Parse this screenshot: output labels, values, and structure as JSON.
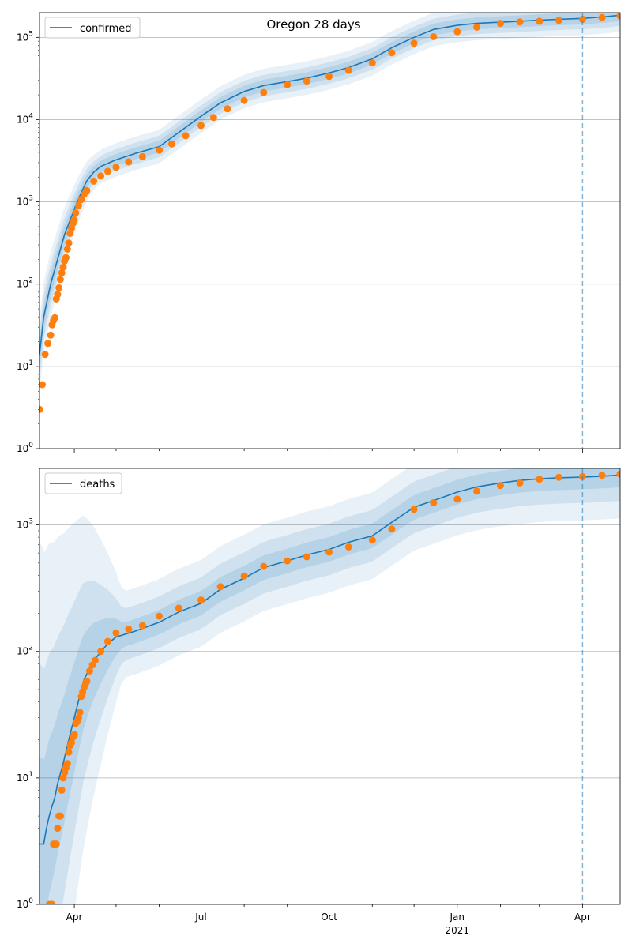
{
  "title": "Oregon 28 days",
  "colors": {
    "model_line": "#1f77b4",
    "observed_points": "#ff7f0e",
    "band": "#1f77b4",
    "grid": "#b0b0b0",
    "forecast_marker": "#1f77b4"
  },
  "x_axis": {
    "type": "date",
    "range": [
      "2020-03-07",
      "2021-04-28"
    ],
    "tick_labels": [
      "Apr",
      "Jul",
      "Oct",
      "Jan",
      "Apr"
    ],
    "year_label": "2021"
  },
  "forecast_start": "2021-04-01",
  "chart_data": [
    {
      "type": "scatter",
      "name": "confirmed",
      "legend": "confirmed",
      "legend_position": "top-left",
      "y_scale": "log",
      "ylim": [
        1,
        200000
      ],
      "y_tick_labels": [
        "10^0",
        "10^1",
        "10^2",
        "10^3",
        "10^4",
        "10^5"
      ],
      "grid": "y",
      "model": {
        "x": [
          "2020-03-07",
          "2020-03-10",
          "2020-03-15",
          "2020-03-20",
          "2020-03-25",
          "2020-03-29",
          "2020-04-02",
          "2020-04-06",
          "2020-04-10",
          "2020-04-15",
          "2020-04-20",
          "2020-04-30",
          "2020-05-15",
          "2020-06-01",
          "2020-06-15",
          "2020-07-01",
          "2020-07-15",
          "2020-08-01",
          "2020-08-15",
          "2020-09-01",
          "2020-09-15",
          "2020-10-01",
          "2020-10-15",
          "2020-11-01",
          "2020-11-15",
          "2020-12-01",
          "2020-12-15",
          "2021-01-01",
          "2021-01-15",
          "2021-02-01",
          "2021-02-15",
          "2021-03-01",
          "2021-03-15",
          "2021-04-01",
          "2021-04-15",
          "2021-04-28"
        ],
        "y": [
          14,
          40,
          100,
          200,
          400,
          600,
          900,
          1300,
          1800,
          2300,
          2700,
          3200,
          3900,
          4700,
          7000,
          11000,
          16000,
          22000,
          26000,
          29000,
          32000,
          37000,
          43000,
          55000,
          75000,
          100000,
          125000,
          140000,
          148000,
          153000,
          157000,
          162000,
          166000,
          170000,
          177000,
          186000
        ]
      },
      "observed": {
        "x": [
          "2020-03-07",
          "2020-03-09",
          "2020-03-11",
          "2020-03-13",
          "2020-03-15",
          "2020-03-16",
          "2020-03-17",
          "2020-03-18",
          "2020-03-19",
          "2020-03-20",
          "2020-03-21",
          "2020-03-22",
          "2020-03-23",
          "2020-03-24",
          "2020-03-25",
          "2020-03-26",
          "2020-03-27",
          "2020-03-28",
          "2020-03-29",
          "2020-03-30",
          "2020-03-31",
          "2020-04-01",
          "2020-04-02",
          "2020-04-04",
          "2020-04-06",
          "2020-04-08",
          "2020-04-10",
          "2020-04-15",
          "2020-04-20",
          "2020-04-25",
          "2020-05-01",
          "2020-05-10",
          "2020-05-20",
          "2020-06-01",
          "2020-06-10",
          "2020-06-20",
          "2020-07-01",
          "2020-07-10",
          "2020-07-20",
          "2020-08-01",
          "2020-08-15",
          "2020-09-01",
          "2020-09-15",
          "2020-10-01",
          "2020-10-15",
          "2020-11-01",
          "2020-11-15",
          "2020-12-01",
          "2020-12-15",
          "2021-01-01",
          "2021-01-15",
          "2021-02-01",
          "2021-02-15",
          "2021-03-01",
          "2021-03-15",
          "2021-04-01",
          "2021-04-15",
          "2021-04-28"
        ],
        "y": [
          3,
          6,
          14,
          19,
          24,
          32,
          36,
          39,
          66,
          75,
          90,
          114,
          137,
          161,
          191,
          210,
          266,
          316,
          414,
          479,
          548,
          606,
          736,
          899,
          1068,
          1239,
          1371,
          1785,
          2059,
          2354,
          2635,
          3068,
          3541,
          4243,
          5060,
          6366,
          8485,
          10605,
          13543,
          17088,
          21400,
          26600,
          29400,
          33500,
          39800,
          49000,
          65000,
          85000,
          102000,
          117000,
          133000,
          148000,
          154000,
          157000,
          161000,
          166000,
          174000,
          183000
        ]
      }
    },
    {
      "type": "scatter",
      "name": "deaths",
      "legend": "deaths",
      "legend_position": "top-left",
      "y_scale": "log",
      "ylim": [
        1,
        2800
      ],
      "y_tick_labels": [
        "10^0",
        "10^1",
        "10^2",
        "10^3"
      ],
      "grid": "y",
      "model": {
        "x": [
          "2020-03-07",
          "2020-03-10",
          "2020-03-12",
          "2020-03-14",
          "2020-03-16",
          "2020-03-18",
          "2020-03-20",
          "2020-03-24",
          "2020-03-28",
          "2020-04-01",
          "2020-04-05",
          "2020-04-08",
          "2020-04-15",
          "2020-04-25",
          "2020-05-01",
          "2020-05-15",
          "2020-06-01",
          "2020-06-15",
          "2020-07-01",
          "2020-07-15",
          "2020-08-01",
          "2020-08-15",
          "2020-09-01",
          "2020-09-15",
          "2020-10-01",
          "2020-10-15",
          "2020-11-01",
          "2020-11-15",
          "2020-12-01",
          "2020-12-15",
          "2021-01-01",
          "2021-01-15",
          "2021-02-01",
          "2021-02-15",
          "2021-03-01",
          "2021-03-15",
          "2021-04-01",
          "2021-04-15",
          "2021-04-28"
        ],
        "y": [
          3,
          3,
          4,
          5,
          6,
          7,
          9,
          13,
          20,
          30,
          45,
          60,
          85,
          115,
          130,
          145,
          170,
          205,
          240,
          310,
          380,
          460,
          520,
          580,
          640,
          730,
          820,
          1050,
          1380,
          1560,
          1820,
          2000,
          2150,
          2250,
          2320,
          2360,
          2390,
          2430,
          2480
        ]
      },
      "observed": {
        "x": [
          "2020-03-14",
          "2020-03-15",
          "2020-03-16",
          "2020-03-17",
          "2020-03-18",
          "2020-03-19",
          "2020-03-20",
          "2020-03-21",
          "2020-03-22",
          "2020-03-23",
          "2020-03-24",
          "2020-03-25",
          "2020-03-26",
          "2020-03-27",
          "2020-03-28",
          "2020-03-29",
          "2020-03-30",
          "2020-03-31",
          "2020-04-01",
          "2020-04-02",
          "2020-04-03",
          "2020-04-04",
          "2020-04-05",
          "2020-04-06",
          "2020-04-07",
          "2020-04-08",
          "2020-04-09",
          "2020-04-10",
          "2020-04-12",
          "2020-04-14",
          "2020-04-16",
          "2020-04-20",
          "2020-04-25",
          "2020-05-01",
          "2020-05-10",
          "2020-05-20",
          "2020-06-01",
          "2020-06-15",
          "2020-07-01",
          "2020-07-15",
          "2020-08-01",
          "2020-08-15",
          "2020-09-01",
          "2020-09-15",
          "2020-10-01",
          "2020-10-15",
          "2020-11-01",
          "2020-11-15",
          "2020-12-01",
          "2020-12-15",
          "2021-01-01",
          "2021-01-15",
          "2021-02-01",
          "2021-02-15",
          "2021-03-01",
          "2021-03-15",
          "2021-04-01",
          "2021-04-15",
          "2021-04-28"
        ],
        "y": [
          1,
          1,
          1,
          3,
          3,
          3,
          4,
          5,
          5,
          8,
          10,
          11,
          12,
          13,
          16,
          18,
          19,
          21,
          22,
          27,
          28,
          30,
          33,
          44,
          48,
          52,
          55,
          58,
          70,
          78,
          85,
          100,
          120,
          140,
          150,
          160,
          190,
          220,
          255,
          325,
          395,
          470,
          520,
          560,
          610,
          670,
          760,
          930,
          1330,
          1500,
          1600,
          1850,
          2050,
          2150,
          2300,
          2380,
          2410,
          2470,
          2530
        ]
      }
    }
  ]
}
